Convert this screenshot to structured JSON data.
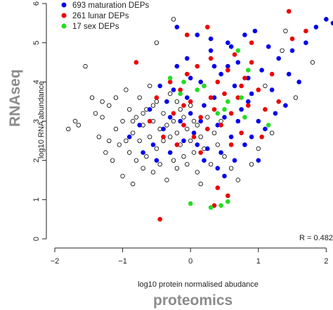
{
  "chart_data": {
    "type": "scatter",
    "xlabel": "log10 protein normalised abudance",
    "ylabel": "log10 RNA abundance",
    "x_title_big": "proteomics",
    "y_title_big": "RNAseq",
    "xlim": [
      -2,
      2.1
    ],
    "ylim": [
      0,
      6
    ],
    "xticks": [
      -2,
      -1,
      0,
      1,
      2
    ],
    "yticks": [
      0,
      1,
      2,
      3,
      4,
      5,
      6
    ],
    "annotation": "R = 0.482",
    "legend_position": "top-left",
    "grid": false,
    "series": [
      {
        "name": "693 maturation DEPs",
        "color": "#0000ee",
        "points": [
          [
            -0.9,
            2.6
          ],
          [
            -0.75,
            2.9
          ],
          [
            -0.6,
            3.3
          ],
          [
            -0.55,
            2.4
          ],
          [
            -0.5,
            2.0
          ],
          [
            -0.4,
            2.8
          ],
          [
            -0.35,
            3.5
          ],
          [
            -0.3,
            2.2
          ],
          [
            -0.25,
            3.8
          ],
          [
            -0.2,
            4.4
          ],
          [
            -0.15,
            3.0
          ],
          [
            -0.1,
            2.5
          ],
          [
            -0.05,
            4.6
          ],
          [
            0.0,
            3.2
          ],
          [
            0.05,
            2.7
          ],
          [
            0.1,
            5.2
          ],
          [
            0.15,
            4.0
          ],
          [
            0.2,
            3.4
          ],
          [
            0.25,
            2.3
          ],
          [
            0.3,
            4.8
          ],
          [
            0.35,
            3.6
          ],
          [
            0.4,
            2.9
          ],
          [
            0.45,
            4.2
          ],
          [
            0.5,
            3.1
          ],
          [
            0.55,
            5.0
          ],
          [
            0.6,
            2.6
          ],
          [
            0.65,
            3.9
          ],
          [
            0.7,
            4.5
          ],
          [
            0.75,
            3.3
          ],
          [
            0.8,
            2.4
          ],
          [
            0.85,
            4.1
          ],
          [
            0.9,
            3.7
          ],
          [
            0.95,
            5.3
          ],
          [
            1.0,
            3.0
          ],
          [
            1.05,
            4.3
          ],
          [
            1.1,
            2.8
          ],
          [
            1.2,
            3.8
          ],
          [
            1.3,
            4.6
          ],
          [
            1.4,
            3.4
          ],
          [
            1.5,
            4.8
          ],
          [
            1.6,
            4.0
          ],
          [
            1.7,
            5.0
          ],
          [
            1.85,
            5.4
          ],
          [
            2.0,
            5.6
          ],
          [
            2.1,
            5.5
          ],
          [
            -0.7,
            2.2
          ],
          [
            -0.45,
            3.9
          ],
          [
            0.0,
            4.1
          ],
          [
            0.4,
            1.8
          ],
          [
            0.5,
            1.6
          ],
          [
            0.2,
            2.0
          ],
          [
            0.6,
            4.9
          ],
          [
            0.8,
            5.2
          ],
          [
            1.15,
            4.9
          ],
          [
            -0.2,
            5.4
          ],
          [
            0.3,
            5.1
          ],
          [
            0.7,
            3.0
          ],
          [
            1.0,
            2.0
          ],
          [
            0.1,
            2.4
          ],
          [
            -0.3,
            3.1
          ],
          [
            0.45,
            2.2
          ],
          [
            0.9,
            2.6
          ],
          [
            1.25,
            3.2
          ],
          [
            1.45,
            4.2
          ],
          [
            0.35,
            4.4
          ],
          [
            -0.05,
            3.6
          ],
          [
            0.65,
            2.0
          ],
          [
            0.85,
            3.5
          ],
          [
            0.55,
            4.4
          ],
          [
            0.15,
            3.0
          ]
        ]
      },
      {
        "name": "261 lunar DEPs",
        "color": "#ee0000",
        "points": [
          [
            -0.6,
            3.0
          ],
          [
            -0.5,
            3.6
          ],
          [
            -0.4,
            2.6
          ],
          [
            -0.3,
            4.0
          ],
          [
            -0.25,
            3.2
          ],
          [
            -0.2,
            2.4
          ],
          [
            -0.15,
            3.8
          ],
          [
            -0.1,
            2.9
          ],
          [
            -0.05,
            4.2
          ],
          [
            0.0,
            3.5
          ],
          [
            0.05,
            2.6
          ],
          [
            0.1,
            4.4
          ],
          [
            0.15,
            3.1
          ],
          [
            0.2,
            3.9
          ],
          [
            0.25,
            2.8
          ],
          [
            0.3,
            4.6
          ],
          [
            0.35,
            3.3
          ],
          [
            0.4,
            4.0
          ],
          [
            0.45,
            2.9
          ],
          [
            0.5,
            3.7
          ],
          [
            0.55,
            4.3
          ],
          [
            0.6,
            3.2
          ],
          [
            0.65,
            4.7
          ],
          [
            0.7,
            3.6
          ],
          [
            0.75,
            2.7
          ],
          [
            0.8,
            4.1
          ],
          [
            0.85,
            3.4
          ],
          [
            0.9,
            4.5
          ],
          [
            1.0,
            3.8
          ],
          [
            1.1,
            3.3
          ],
          [
            1.2,
            4.2
          ],
          [
            1.3,
            3.5
          ],
          [
            1.5,
            5.1
          ],
          [
            1.7,
            5.3
          ],
          [
            -0.45,
            0.5
          ],
          [
            0.35,
            0.85
          ],
          [
            0.55,
            1.1
          ],
          [
            0.4,
            1.3
          ],
          [
            -0.05,
            5.2
          ],
          [
            0.25,
            5.4
          ],
          [
            0.9,
            5.0
          ],
          [
            1.45,
            5.8
          ],
          [
            -0.8,
            4.5
          ],
          [
            -0.1,
            3.4
          ],
          [
            0.15,
            2.2
          ],
          [
            0.6,
            2.4
          ],
          [
            1.05,
            2.6
          ],
          [
            0.3,
            3.6
          ],
          [
            0.75,
            3.9
          ]
        ]
      },
      {
        "name": "17 sex DEPs",
        "color": "#22dd22",
        "points": [
          [
            -0.3,
            4.1
          ],
          [
            -0.15,
            3.7
          ],
          [
            0.2,
            3.9
          ],
          [
            0.5,
            3.3
          ],
          [
            0.55,
            3.5
          ],
          [
            0.7,
            4.8
          ],
          [
            0.75,
            3.6
          ],
          [
            0.8,
            3.1
          ],
          [
            0.85,
            4.3
          ],
          [
            0.0,
            0.9
          ],
          [
            0.3,
            0.8
          ],
          [
            0.45,
            0.85
          ],
          [
            0.55,
            0.95
          ],
          [
            -0.1,
            4.0
          ],
          [
            0.4,
            3.2
          ],
          [
            1.15,
            2.9
          ],
          [
            0.1,
            3.8
          ]
        ]
      },
      {
        "name": "",
        "color": "#000000",
        "points": [
          [
            -1.8,
            2.8
          ],
          [
            -1.7,
            3.0
          ],
          [
            -1.65,
            2.9
          ],
          [
            -1.55,
            4.4
          ],
          [
            -1.45,
            3.6
          ],
          [
            -1.4,
            3.2
          ],
          [
            -1.35,
            2.6
          ],
          [
            -1.3,
            3.1
          ],
          [
            -1.2,
            2.5
          ],
          [
            -1.2,
            3.4
          ],
          [
            -1.15,
            2.0
          ],
          [
            -1.1,
            2.8
          ],
          [
            -1.1,
            3.6
          ],
          [
            -1.05,
            2.4
          ],
          [
            -1.0,
            3.0
          ],
          [
            -1.0,
            1.6
          ],
          [
            -0.95,
            3.8
          ],
          [
            -0.9,
            2.2
          ],
          [
            -0.9,
            3.3
          ],
          [
            -0.85,
            2.7
          ],
          [
            -0.85,
            1.4
          ],
          [
            -0.8,
            3.1
          ],
          [
            -0.8,
            2.0
          ],
          [
            -0.75,
            3.6
          ],
          [
            -0.75,
            2.5
          ],
          [
            -0.7,
            1.8
          ],
          [
            -0.7,
            2.9
          ],
          [
            -0.65,
            3.3
          ],
          [
            -0.65,
            2.1
          ],
          [
            -0.6,
            2.6
          ],
          [
            -0.6,
            3.9
          ],
          [
            -0.55,
            1.7
          ],
          [
            -0.55,
            3.0
          ],
          [
            -0.5,
            2.3
          ],
          [
            -0.5,
            3.5
          ],
          [
            -0.45,
            2.8
          ],
          [
            -0.45,
            1.9
          ],
          [
            -0.4,
            3.2
          ],
          [
            -0.4,
            2.5
          ],
          [
            -0.35,
            1.5
          ],
          [
            -0.35,
            2.9
          ],
          [
            -0.3,
            2.6
          ],
          [
            -0.3,
            3.7
          ],
          [
            -0.25,
            2.0
          ],
          [
            -0.25,
            3.0
          ],
          [
            -0.2,
            2.7
          ],
          [
            -0.2,
            1.8
          ],
          [
            -0.15,
            3.3
          ],
          [
            -0.15,
            2.4
          ],
          [
            -0.1,
            2.1
          ],
          [
            -0.1,
            3.1
          ],
          [
            -0.05,
            2.8
          ],
          [
            -0.05,
            1.9
          ],
          [
            0.0,
            2.5
          ],
          [
            0.0,
            3.4
          ],
          [
            0.05,
            2.2
          ],
          [
            0.05,
            3.0
          ],
          [
            0.1,
            1.7
          ],
          [
            0.1,
            2.9
          ],
          [
            0.15,
            2.6
          ],
          [
            0.2,
            2.3
          ],
          [
            0.25,
            3.1
          ],
          [
            0.3,
            1.9
          ],
          [
            0.35,
            2.7
          ],
          [
            0.4,
            2.4
          ],
          [
            0.5,
            2.1
          ],
          [
            0.6,
            1.8
          ],
          [
            0.7,
            1.5
          ],
          [
            0.9,
            1.9
          ],
          [
            1.0,
            2.3
          ],
          [
            1.1,
            3.9
          ],
          [
            1.2,
            2.7
          ],
          [
            1.35,
            4.8
          ],
          [
            1.4,
            5.3
          ],
          [
            1.55,
            3.6
          ],
          [
            1.8,
            4.5
          ],
          [
            -0.25,
            5.6
          ],
          [
            -0.5,
            5.0
          ],
          [
            0.15,
            1.4
          ],
          [
            -1.3,
            3.5
          ],
          [
            -0.95,
            2.5
          ],
          [
            -0.55,
            3.4
          ],
          [
            -0.2,
            3.5
          ],
          [
            -0.7,
            3.2
          ],
          [
            0.45,
            3.0
          ],
          [
            -1.25,
            2.2
          ],
          [
            -0.85,
            3.0
          ]
        ]
      }
    ]
  }
}
